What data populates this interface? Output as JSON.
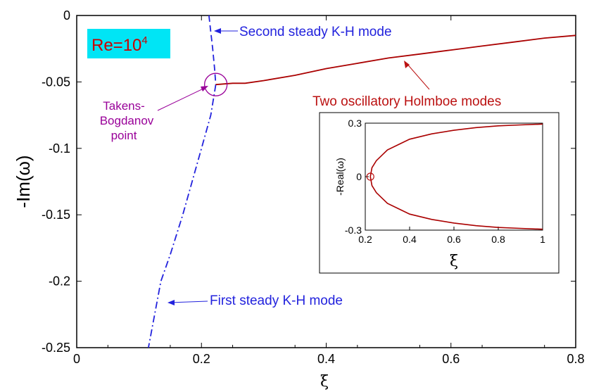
{
  "chart_data": [
    {
      "type": "line",
      "xlabel": "ξ",
      "ylabel": "-Im(ω)",
      "xlim": [
        0,
        0.8
      ],
      "ylim": [
        -0.25,
        0
      ],
      "xticks": [
        "0",
        "0.2",
        "0.4",
        "0.6",
        "0.8"
      ],
      "yticks": [
        "0",
        "-0.05",
        "-0.1",
        "-0.15",
        "-0.2",
        "-0.25"
      ],
      "badge": {
        "text": "Re=10",
        "sup": "4"
      },
      "series": [
        {
          "label": "Second steady K-H mode",
          "color": "#2222dd",
          "style": "dashed",
          "x": [
            0.212,
            0.215,
            0.218,
            0.221,
            0.223
          ],
          "y": [
            0.0,
            -0.0125,
            -0.025,
            -0.04,
            -0.052
          ]
        },
        {
          "label": "First steady K-H mode",
          "color": "#2222dd",
          "style": "dashdot",
          "x": [
            0.223,
            0.215,
            0.2,
            0.185,
            0.17,
            0.15,
            0.135,
            0.115
          ],
          "y": [
            -0.052,
            -0.075,
            -0.1,
            -0.125,
            -0.15,
            -0.18,
            -0.2,
            -0.25
          ]
        },
        {
          "label": "Two oscillatory Holmboe modes",
          "color": "#aa0000",
          "style": "solid",
          "x": [
            0.223,
            0.25,
            0.27,
            0.3,
            0.35,
            0.4,
            0.45,
            0.5,
            0.55,
            0.6,
            0.65,
            0.7,
            0.75,
            0.8
          ],
          "y": [
            -0.052,
            -0.051,
            -0.051,
            -0.049,
            -0.045,
            -0.04,
            -0.036,
            -0.032,
            -0.029,
            -0.026,
            -0.023,
            -0.02,
            -0.017,
            -0.015
          ]
        }
      ],
      "annotations": [
        {
          "text": "Second steady K-H mode",
          "x": 0.23,
          "y": -0.02
        },
        {
          "text": "First steady K-H mode",
          "x": 0.15,
          "y": -0.217
        },
        {
          "text": "Two oscillatory Holmboe modes",
          "x": 0.53,
          "y": -0.03
        },
        {
          "text": [
            "Takens-",
            "Bogdanov",
            "point"
          ],
          "x": 0.223,
          "y": -0.052
        }
      ]
    },
    {
      "type": "line",
      "xlabel": "ξ",
      "ylabel": "-Real(ω)",
      "xlim": [
        0.2,
        1
      ],
      "ylim": [
        -0.3,
        0.3
      ],
      "xticks": [
        "0.2",
        "0.4",
        "0.6",
        "0.8",
        "1"
      ],
      "yticks": [
        "0.3",
        "0",
        "-0.3"
      ],
      "series": [
        {
          "color": "#aa0000",
          "x": [
            0.223,
            0.23,
            0.25,
            0.3,
            0.35,
            0.4,
            0.5,
            0.6,
            0.7,
            0.8,
            0.9,
            1.0
          ],
          "y": [
            0.0,
            0.05,
            0.09,
            0.15,
            0.18,
            0.21,
            0.24,
            0.26,
            0.275,
            0.285,
            0.29,
            0.295
          ]
        },
        {
          "color": "#aa0000",
          "x": [
            0.223,
            0.23,
            0.25,
            0.3,
            0.35,
            0.4,
            0.5,
            0.6,
            0.7,
            0.8,
            0.9,
            1.0
          ],
          "y": [
            0.0,
            -0.05,
            -0.09,
            -0.15,
            -0.18,
            -0.21,
            -0.24,
            -0.26,
            -0.275,
            -0.285,
            -0.29,
            -0.295
          ]
        }
      ],
      "marker": {
        "x": 0.223,
        "y": 0.0
      }
    }
  ]
}
